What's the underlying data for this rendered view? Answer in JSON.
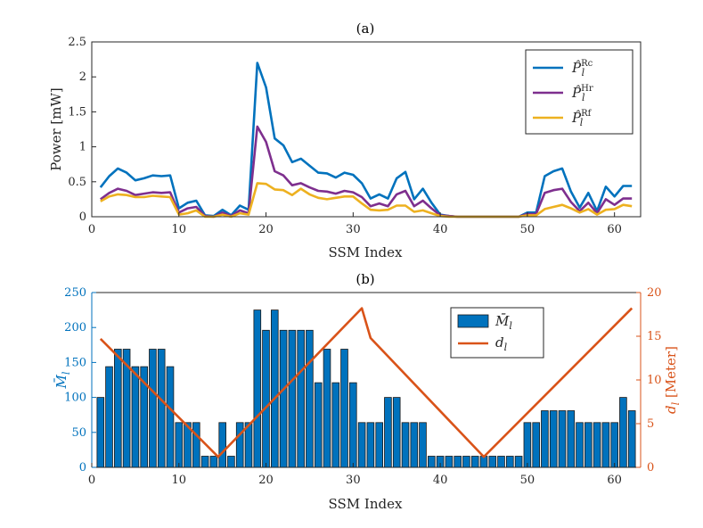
{
  "chart_data": [
    {
      "type": "line",
      "title": "(a)",
      "xlabel": "SSM Index",
      "ylabel": "Power [mW]",
      "xlim": [
        0,
        63
      ],
      "ylim": [
        0,
        2.5
      ],
      "xticks": [
        0,
        10,
        20,
        30,
        40,
        50,
        60
      ],
      "yticks": [
        0,
        0.5,
        1,
        1.5,
        2,
        2.5
      ],
      "ytick_labels": [
        "0",
        "0.5",
        "1",
        "1.5",
        "2",
        "2.5"
      ],
      "legend_position": "top-right",
      "grid": false,
      "x": [
        1,
        2,
        3,
        4,
        5,
        6,
        7,
        8,
        9,
        10,
        11,
        12,
        13,
        14,
        15,
        16,
        17,
        18,
        19,
        20,
        21,
        22,
        23,
        24,
        25,
        26,
        27,
        28,
        29,
        30,
        31,
        32,
        33,
        34,
        35,
        36,
        37,
        38,
        39,
        40,
        41,
        42,
        43,
        44,
        45,
        46,
        47,
        48,
        49,
        50,
        51,
        52,
        53,
        54,
        55,
        56,
        57,
        58,
        59,
        60,
        61,
        62
      ],
      "series": [
        {
          "name": "P̂ₗ^Rc",
          "name_base": "P̂",
          "name_sub": "l",
          "name_sup": "Rc",
          "color": "#0072BD",
          "values": [
            0.42,
            0.58,
            0.69,
            0.63,
            0.52,
            0.55,
            0.59,
            0.58,
            0.59,
            0.12,
            0.2,
            0.23,
            0.02,
            0.01,
            0.1,
            0.02,
            0.16,
            0.1,
            2.2,
            1.85,
            1.12,
            1.02,
            0.78,
            0.83,
            0.73,
            0.63,
            0.62,
            0.56,
            0.63,
            0.6,
            0.48,
            0.26,
            0.32,
            0.26,
            0.55,
            0.64,
            0.25,
            0.4,
            0.2,
            0.03,
            0.01,
            0.0,
            0.0,
            0.0,
            0.0,
            0.0,
            0.0,
            0.0,
            0.0,
            0.06,
            0.06,
            0.58,
            0.65,
            0.69,
            0.36,
            0.13,
            0.34,
            0.08,
            0.43,
            0.29,
            0.44,
            0.44
          ]
        },
        {
          "name": "P̂ₗ^Hr",
          "name_base": "P̂",
          "name_sub": "l",
          "name_sup": "Hr",
          "color": "#7E2F8E",
          "values": [
            0.25,
            0.34,
            0.4,
            0.37,
            0.31,
            0.33,
            0.35,
            0.34,
            0.35,
            0.06,
            0.12,
            0.14,
            0.01,
            0.0,
            0.06,
            0.01,
            0.09,
            0.05,
            1.29,
            1.07,
            0.65,
            0.59,
            0.45,
            0.48,
            0.42,
            0.37,
            0.36,
            0.33,
            0.37,
            0.35,
            0.28,
            0.15,
            0.19,
            0.15,
            0.32,
            0.37,
            0.15,
            0.23,
            0.12,
            0.02,
            0.01,
            0.0,
            0.0,
            0.0,
            0.0,
            0.0,
            0.0,
            0.0,
            0.0,
            0.04,
            0.04,
            0.34,
            0.38,
            0.4,
            0.21,
            0.08,
            0.2,
            0.05,
            0.25,
            0.17,
            0.26,
            0.26
          ]
        },
        {
          "name": "P̂ₗ^Rf",
          "name_base": "P̂",
          "name_sub": "l",
          "name_sup": "Rf",
          "color": "#EDB120",
          "values": [
            0.22,
            0.29,
            0.32,
            0.31,
            0.28,
            0.28,
            0.3,
            0.29,
            0.28,
            0.03,
            0.05,
            0.09,
            0.0,
            0.0,
            0.03,
            0.0,
            0.05,
            0.03,
            0.48,
            0.47,
            0.39,
            0.38,
            0.31,
            0.4,
            0.32,
            0.27,
            0.25,
            0.27,
            0.29,
            0.29,
            0.19,
            0.1,
            0.09,
            0.1,
            0.16,
            0.16,
            0.07,
            0.09,
            0.05,
            0.01,
            0.0,
            0.0,
            0.0,
            0.0,
            0.0,
            0.0,
            0.0,
            0.0,
            0.0,
            0.02,
            0.02,
            0.11,
            0.14,
            0.17,
            0.12,
            0.06,
            0.11,
            0.03,
            0.1,
            0.11,
            0.17,
            0.15
          ]
        }
      ]
    },
    {
      "type": "bar",
      "title": "(b)",
      "xlabel": "SSM Index",
      "ylabel": "M̄ₗ",
      "ylabel_base": "M̄",
      "ylabel_sub": "l",
      "ylabel_right": "dₗ [Meter]",
      "ylabel_right_base": "d",
      "ylabel_right_sub": "l",
      "ylabel_right_unit": " [Meter]",
      "xlim": [
        0,
        63
      ],
      "ylim": [
        0,
        250
      ],
      "ylim_right": [
        0,
        20
      ],
      "xticks": [
        0,
        10,
        20,
        30,
        40,
        50,
        60
      ],
      "yticks": [
        0,
        50,
        100,
        150,
        200,
        250
      ],
      "yticks_right": [
        0,
        5,
        10,
        15,
        20
      ],
      "legend_position": "top-right",
      "grid": false,
      "left_axis_color": "#0072BD",
      "right_axis_color": "#D95319",
      "x": [
        1,
        2,
        3,
        4,
        5,
        6,
        7,
        8,
        9,
        10,
        11,
        12,
        13,
        14,
        15,
        16,
        17,
        18,
        19,
        20,
        21,
        22,
        23,
        24,
        25,
        26,
        27,
        28,
        29,
        30,
        31,
        32,
        33,
        34,
        35,
        36,
        37,
        38,
        39,
        40,
        41,
        42,
        43,
        44,
        45,
        46,
        47,
        48,
        49,
        50,
        51,
        52,
        53,
        54,
        55,
        56,
        57,
        58,
        59,
        60,
        61,
        62
      ],
      "series": [
        {
          "name": "M̄ₗ",
          "name_base": "M̄",
          "name_sub": "l",
          "kind": "bar",
          "axis": "left",
          "color": "#0072BD",
          "values": [
            100,
            144,
            169,
            169,
            144,
            144,
            169,
            169,
            144,
            64,
            64,
            64,
            16,
            16,
            64,
            16,
            64,
            64,
            225,
            196,
            225,
            196,
            196,
            196,
            196,
            121,
            169,
            121,
            169,
            121,
            64,
            64,
            64,
            100,
            100,
            64,
            64,
            64,
            16,
            16,
            16,
            16,
            16,
            16,
            16,
            16,
            16,
            16,
            16,
            64,
            64,
            81,
            81,
            81,
            81,
            64,
            64,
            64,
            64,
            64,
            100,
            81
          ]
        },
        {
          "name": "dₗ",
          "name_base": "d",
          "name_sub": "l",
          "kind": "line",
          "axis": "right",
          "color": "#D95319",
          "points": [
            [
              1,
              14.7
            ],
            [
              14.5,
              1.2
            ],
            [
              31,
              18.2
            ],
            [
              32,
              14.8
            ],
            [
              45,
              1.2
            ],
            [
              62,
              18.2
            ]
          ]
        }
      ]
    }
  ]
}
